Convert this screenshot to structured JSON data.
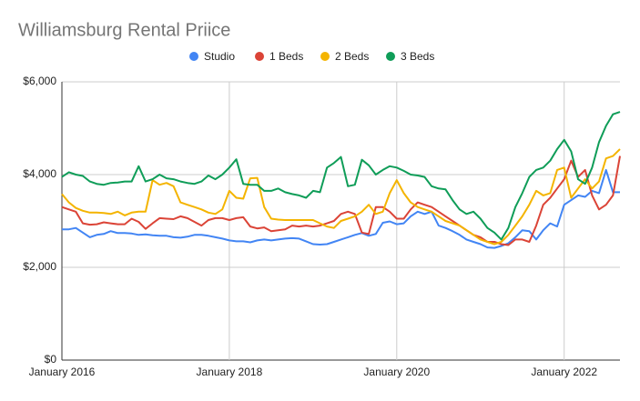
{
  "chart_data": {
    "type": "line",
    "title": "Williamsburg Rental Priice",
    "categories": [
      "January 2016",
      null,
      null,
      null,
      null,
      null,
      null,
      null,
      null,
      null,
      null,
      null,
      null,
      null,
      null,
      null,
      null,
      null,
      null,
      null,
      null,
      null,
      null,
      null,
      "January 2018",
      null,
      null,
      null,
      null,
      null,
      null,
      null,
      null,
      null,
      null,
      null,
      null,
      null,
      null,
      null,
      null,
      null,
      null,
      null,
      null,
      null,
      null,
      null,
      "January 2020",
      null,
      null,
      null,
      null,
      null,
      null,
      null,
      null,
      null,
      null,
      null,
      null,
      null,
      null,
      null,
      null,
      null,
      null,
      null,
      null,
      null,
      null,
      null,
      "January 2022",
      null,
      null,
      null,
      null,
      null,
      null,
      null,
      null
    ],
    "series": [
      {
        "name": "Studio",
        "color": "#4285f4",
        "values": [
          2820,
          2820,
          2850,
          2750,
          2650,
          2700,
          2720,
          2780,
          2740,
          2740,
          2730,
          2700,
          2710,
          2690,
          2680,
          2680,
          2650,
          2640,
          2660,
          2700,
          2700,
          2680,
          2650,
          2620,
          2580,
          2560,
          2560,
          2540,
          2580,
          2600,
          2580,
          2600,
          2620,
          2630,
          2620,
          2560,
          2500,
          2490,
          2500,
          2550,
          2600,
          2650,
          2700,
          2740,
          2680,
          2720,
          2960,
          2990,
          2930,
          2950,
          3100,
          3200,
          3150,
          3200,
          2900,
          2850,
          2780,
          2700,
          2600,
          2550,
          2500,
          2430,
          2420,
          2460,
          2520,
          2650,
          2800,
          2780,
          2600,
          2800,
          2950,
          2880,
          3350,
          3450,
          3550,
          3520,
          3650,
          3600,
          4100,
          3620,
          3620
        ]
      },
      {
        "name": "1 Beds",
        "color": "#db4437",
        "values": [
          3300,
          3250,
          3200,
          2950,
          2920,
          2930,
          2970,
          2950,
          2930,
          2930,
          3050,
          2980,
          2830,
          2950,
          3060,
          3050,
          3040,
          3100,
          3060,
          2980,
          2900,
          3020,
          3060,
          3060,
          3020,
          3060,
          3080,
          2880,
          2840,
          2860,
          2780,
          2800,
          2820,
          2900,
          2880,
          2900,
          2880,
          2900,
          2950,
          3000,
          3150,
          3200,
          3150,
          2750,
          2720,
          3300,
          3300,
          3200,
          3050,
          3050,
          3250,
          3400,
          3350,
          3300,
          3200,
          3100,
          3000,
          2900,
          2800,
          2700,
          2650,
          2550,
          2550,
          2500,
          2480,
          2600,
          2600,
          2550,
          2900,
          3350,
          3500,
          3700,
          3900,
          4300,
          3950,
          4100,
          3550,
          3250,
          3350,
          3550,
          4400
        ]
      },
      {
        "name": "2 Beds",
        "color": "#f4b400",
        "values": [
          3580,
          3400,
          3280,
          3220,
          3180,
          3180,
          3170,
          3150,
          3200,
          3120,
          3180,
          3200,
          3200,
          3880,
          3780,
          3820,
          3750,
          3400,
          3350,
          3300,
          3250,
          3180,
          3150,
          3250,
          3650,
          3500,
          3480,
          3920,
          3930,
          3300,
          3050,
          3030,
          3020,
          3020,
          3020,
          3020,
          3020,
          2950,
          2880,
          2850,
          3000,
          3050,
          3100,
          3200,
          3350,
          3150,
          3200,
          3600,
          3880,
          3600,
          3400,
          3300,
          3250,
          3200,
          3100,
          3000,
          2950,
          2900,
          2800,
          2700,
          2600,
          2550,
          2500,
          2550,
          2700,
          2900,
          3100,
          3350,
          3650,
          3550,
          3600,
          4100,
          4150,
          3500,
          3700,
          3900,
          3700,
          3850,
          4350,
          4400,
          4550
        ]
      },
      {
        "name": "3 Beds",
        "color": "#0f9d58",
        "values": [
          3950,
          4050,
          4000,
          3970,
          3850,
          3800,
          3780,
          3820,
          3830,
          3850,
          3850,
          4180,
          3850,
          3900,
          4000,
          3920,
          3900,
          3850,
          3820,
          3800,
          3850,
          3980,
          3900,
          4000,
          4150,
          4330,
          3800,
          3780,
          3780,
          3650,
          3650,
          3700,
          3620,
          3580,
          3550,
          3500,
          3650,
          3620,
          4150,
          4250,
          4380,
          3750,
          3780,
          4320,
          4200,
          4000,
          4100,
          4180,
          4150,
          4080,
          4000,
          3980,
          3950,
          3750,
          3700,
          3680,
          3450,
          3250,
          3150,
          3200,
          3050,
          2850,
          2750,
          2600,
          2850,
          3300,
          3600,
          3950,
          4100,
          4150,
          4300,
          4550,
          4750,
          4500,
          3900,
          3800,
          4150,
          4700,
          5050,
          5300,
          5350
        ]
      }
    ],
    "ylim": [
      0,
      6000
    ],
    "yticks": [
      {
        "value": 0,
        "label": "$0"
      },
      {
        "value": 2000,
        "label": "$2,000"
      },
      {
        "value": 4000,
        "label": "$4,000"
      },
      {
        "value": 6000,
        "label": "$6,000"
      }
    ],
    "grid": true,
    "legend": "top"
  }
}
